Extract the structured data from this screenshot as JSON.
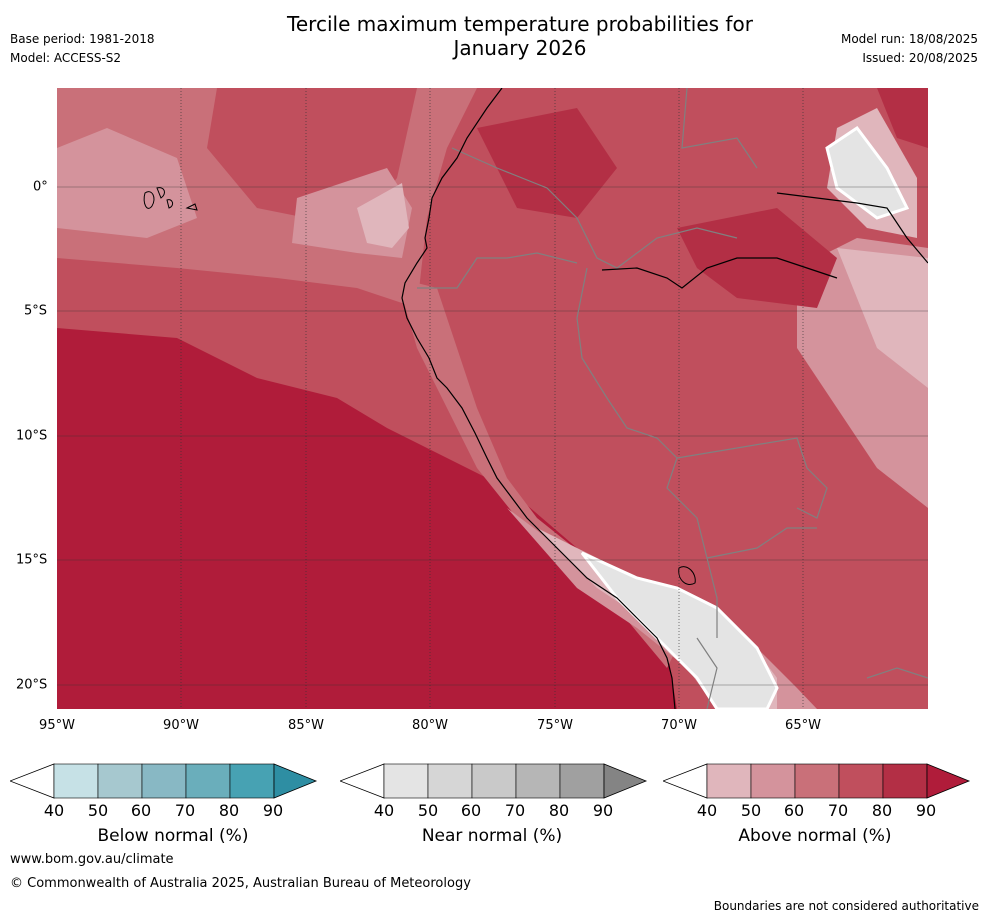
{
  "header": {
    "title_line1": "Tercile maximum temperature probabilities for",
    "title_line2": "January 2026",
    "base_period": "Base period: 1981-2018",
    "model": "Model: ACCESS-S2",
    "model_run": "Model run: 18/08/2025",
    "issued": "Issued: 20/08/2025"
  },
  "axes": {
    "x_ticks": [
      "95°W",
      "90°W",
      "85°W",
      "80°W",
      "75°W",
      "70°W",
      "65°W"
    ],
    "y_ticks": [
      "0°",
      "5°S",
      "10°S",
      "15°S",
      "20°S"
    ]
  },
  "colorbars": [
    {
      "label": "Below normal (%)",
      "ticks": [
        "40",
        "50",
        "60",
        "70",
        "80",
        "90"
      ],
      "colors": [
        "#ffffff",
        "#c6e1e6",
        "#a6c8cf",
        "#88b8c4",
        "#6aaebb",
        "#47a2b3"
      ],
      "end": "#2e8ea3"
    },
    {
      "label": "Near normal (%)",
      "ticks": [
        "40",
        "50",
        "60",
        "70",
        "80",
        "90"
      ],
      "colors": [
        "#ffffff",
        "#e4e4e4",
        "#d6d6d6",
        "#c9c9c9",
        "#b6b6b6",
        "#a0a0a0"
      ],
      "end": "#848484"
    },
    {
      "label": "Above normal (%)",
      "ticks": [
        "40",
        "50",
        "60",
        "70",
        "80",
        "90"
      ],
      "colors": [
        "#ffffff",
        "#e0b6bc",
        "#d4939c",
        "#c97079",
        "#c04f5d",
        "#b32f45"
      ],
      "end": "#b01c3a"
    }
  ],
  "footer": {
    "url": "www.bom.gov.au/climate",
    "copyright": "© Commonwealth of Australia 2025, Australian Bureau of Meteorology",
    "disclaimer": "Boundaries are not considered authoritative"
  }
}
